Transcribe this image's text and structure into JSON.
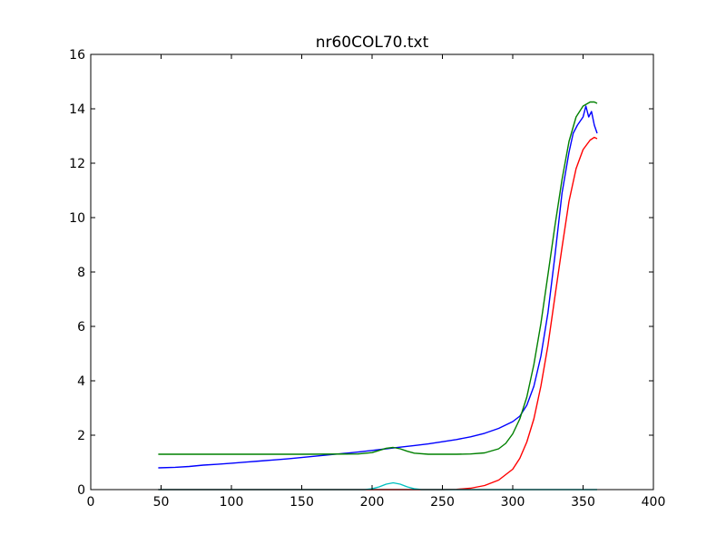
{
  "chart_data": {
    "type": "line",
    "title": "nr60COL70.txt",
    "xlabel": "",
    "ylabel": "",
    "xlim": [
      0,
      400
    ],
    "ylim": [
      0,
      16
    ],
    "xticks": [
      "0",
      "50",
      "100",
      "150",
      "200",
      "250",
      "300",
      "350",
      "400"
    ],
    "yticks": [
      "0",
      "2",
      "4",
      "6",
      "8",
      "10",
      "12",
      "14",
      "16"
    ],
    "grid": false,
    "legend": "none",
    "series": [
      {
        "color": "#0000ff",
        "x": [
          48,
          60,
          70,
          80,
          90,
          100,
          110,
          120,
          130,
          140,
          150,
          160,
          170,
          180,
          190,
          200,
          210,
          220,
          230,
          240,
          250,
          260,
          270,
          280,
          290,
          300,
          305,
          310,
          315,
          320,
          325,
          330,
          335,
          340,
          343,
          346,
          350,
          352,
          354,
          356,
          358,
          360
        ],
        "y": [
          0.8,
          0.82,
          0.85,
          0.9,
          0.93,
          0.97,
          1.01,
          1.05,
          1.09,
          1.13,
          1.18,
          1.23,
          1.28,
          1.33,
          1.38,
          1.44,
          1.5,
          1.56,
          1.62,
          1.68,
          1.76,
          1.84,
          1.94,
          2.07,
          2.25,
          2.5,
          2.7,
          3.1,
          3.8,
          4.9,
          6.5,
          8.6,
          10.9,
          12.4,
          13.1,
          13.4,
          13.7,
          14.1,
          13.7,
          13.9,
          13.4,
          13.1
        ]
      },
      {
        "color": "#008000",
        "x": [
          48,
          100,
          150,
          190,
          200,
          205,
          210,
          215,
          220,
          225,
          230,
          240,
          260,
          270,
          280,
          290,
          295,
          300,
          305,
          310,
          315,
          320,
          325,
          330,
          335,
          340,
          345,
          350,
          355,
          358,
          360
        ],
        "y": [
          1.3,
          1.3,
          1.3,
          1.31,
          1.36,
          1.44,
          1.52,
          1.55,
          1.5,
          1.41,
          1.34,
          1.3,
          1.3,
          1.31,
          1.35,
          1.5,
          1.7,
          2.05,
          2.6,
          3.4,
          4.6,
          6.1,
          7.9,
          9.7,
          11.4,
          12.8,
          13.7,
          14.1,
          14.25,
          14.25,
          14.2
        ]
      },
      {
        "color": "#ff0000",
        "x": [
          48,
          100,
          200,
          250,
          260,
          270,
          280,
          290,
          300,
          305,
          310,
          315,
          320,
          325,
          330,
          335,
          340,
          345,
          350,
          355,
          358,
          360
        ],
        "y": [
          0,
          0,
          0,
          0,
          0.01,
          0.05,
          0.15,
          0.35,
          0.75,
          1.15,
          1.75,
          2.6,
          3.8,
          5.3,
          7.1,
          8.9,
          10.6,
          11.8,
          12.5,
          12.85,
          12.95,
          12.9
        ]
      },
      {
        "color": "#00bfbf",
        "x": [
          48,
          150,
          195,
          200,
          205,
          210,
          215,
          220,
          225,
          230,
          235,
          250,
          300,
          360
        ],
        "y": [
          0,
          0,
          0,
          0.03,
          0.1,
          0.2,
          0.25,
          0.2,
          0.1,
          0.03,
          0,
          0,
          0,
          0
        ]
      }
    ]
  }
}
